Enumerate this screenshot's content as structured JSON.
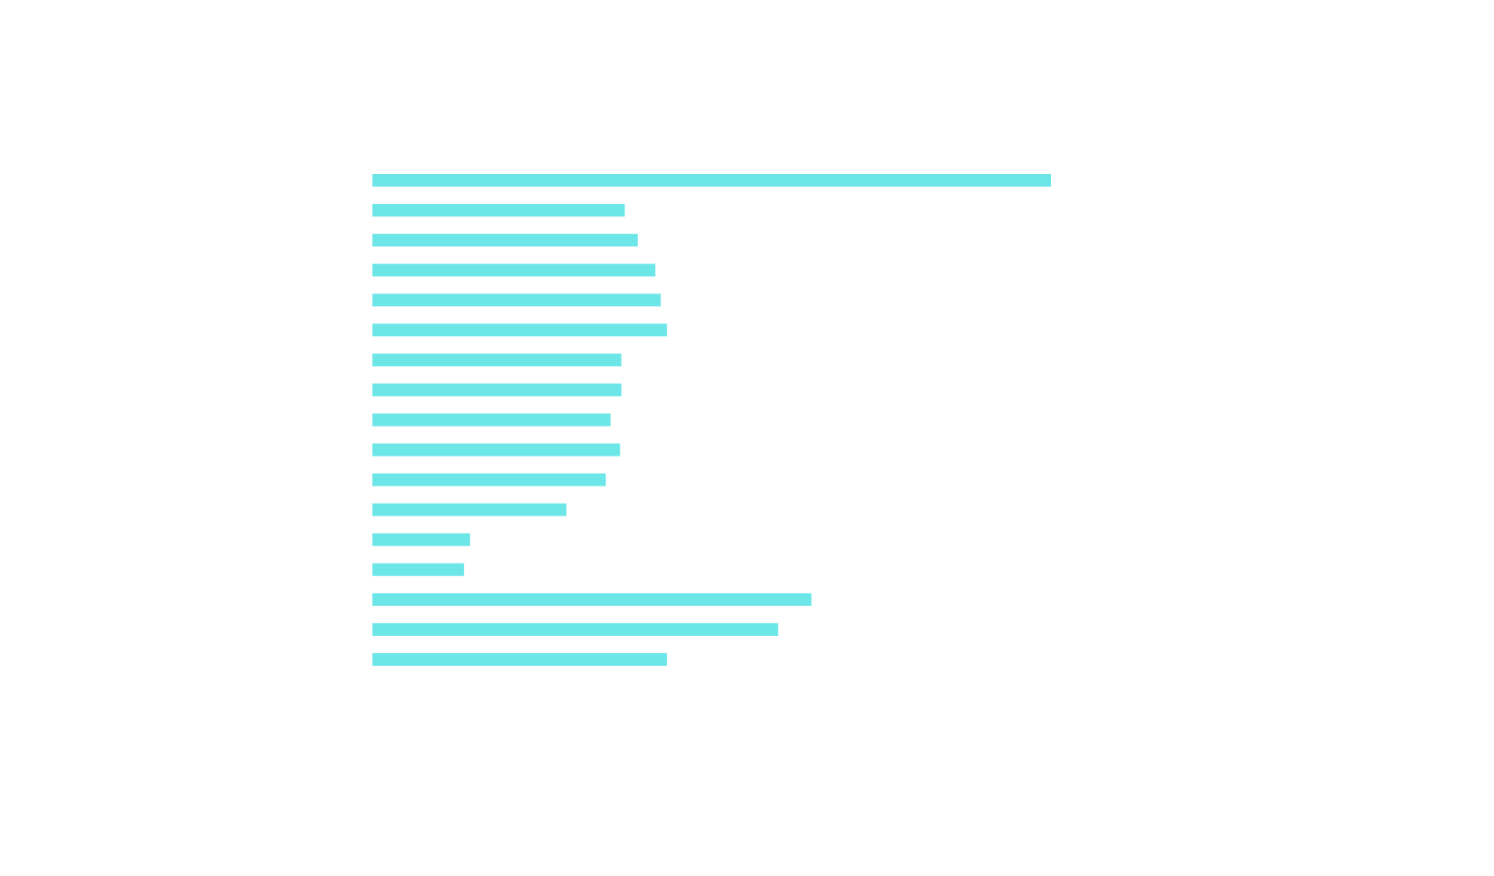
{
  "chart_data": {
    "type": "bar",
    "orientation": "horizontal",
    "bar_color": "#6de6e8",
    "grid": false,
    "legend": "none",
    "xlim": [
      0,
      100
    ],
    "values": [
      100,
      37.2,
      39.1,
      41.7,
      42.5,
      43.4,
      36.7,
      36.7,
      35.1,
      36.5,
      34.4,
      28.6,
      14.4,
      13.5,
      64.7,
      59.8,
      43.4
    ]
  }
}
